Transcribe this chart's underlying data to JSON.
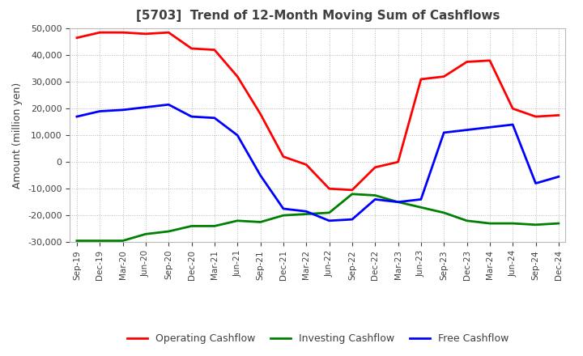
{
  "title": "[5703]  Trend of 12-Month Moving Sum of Cashflows",
  "ylabel": "Amount (million yen)",
  "background_color": "#ffffff",
  "grid_color": "#999999",
  "x_labels": [
    "Sep-19",
    "Dec-19",
    "Mar-20",
    "Jun-20",
    "Sep-20",
    "Dec-20",
    "Mar-21",
    "Jun-21",
    "Sep-21",
    "Dec-21",
    "Mar-22",
    "Jun-22",
    "Sep-22",
    "Dec-22",
    "Mar-23",
    "Jun-23",
    "Sep-23",
    "Dec-23",
    "Mar-24",
    "Jun-24",
    "Sep-24",
    "Dec-24"
  ],
  "operating": [
    46500,
    48500,
    48500,
    48000,
    48500,
    42500,
    42000,
    32000,
    18000,
    2000,
    -1000,
    -10000,
    -10500,
    -2000,
    0,
    31000,
    32000,
    37500,
    38000,
    20000,
    17000,
    17500
  ],
  "investing": [
    -29500,
    -29500,
    -29500,
    -27000,
    -26000,
    -24000,
    -24000,
    -22000,
    -22500,
    -20000,
    -19500,
    -19000,
    -12000,
    -12500,
    -15000,
    -17000,
    -19000,
    -22000,
    -23000,
    -23000,
    -23500,
    -23000
  ],
  "free": [
    17000,
    19000,
    19500,
    20500,
    21500,
    17000,
    16500,
    10000,
    -5000,
    -17500,
    -18500,
    -22000,
    -21500,
    -14000,
    -15000,
    -14000,
    11000,
    12000,
    13000,
    14000,
    -8000,
    -5500
  ],
  "ylim": [
    -30000,
    50000
  ],
  "yticks": [
    -30000,
    -20000,
    -10000,
    0,
    10000,
    20000,
    30000,
    40000,
    50000
  ],
  "operating_color": "#ff0000",
  "investing_color": "#008000",
  "free_color": "#0000ff",
  "line_width": 2.0,
  "title_color": "#404040",
  "tick_color": "#404040",
  "label_color": "#404040"
}
